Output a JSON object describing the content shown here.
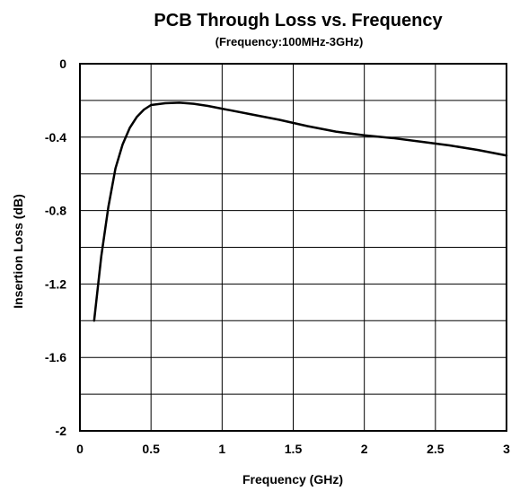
{
  "chart_data": {
    "type": "line",
    "title": "PCB Through Loss vs. Frequency",
    "subtitle": "(Frequency:100MHz-3GHz)",
    "xlabel": "Frequency (GHz)",
    "ylabel": "Insertion Loss (dB)",
    "xlim": [
      0,
      3
    ],
    "ylim": [
      -2,
      0
    ],
    "x_ticks": [
      0,
      0.5,
      1,
      1.5,
      2,
      2.5,
      3
    ],
    "x_tick_labels": [
      "0",
      "0.5",
      "1",
      "1.5",
      "2",
      "2.5",
      "3"
    ],
    "y_ticks": [
      0,
      -0.4,
      -0.8,
      -1.2,
      -1.6,
      -2
    ],
    "y_tick_labels": [
      "0",
      "-0.4",
      "-0.8",
      "-1.2",
      "-1.6",
      "-2"
    ],
    "grid": true,
    "series": [
      {
        "color": "#000000",
        "x": [
          0.1,
          0.15,
          0.2,
          0.25,
          0.3,
          0.35,
          0.4,
          0.45,
          0.5,
          0.6,
          0.7,
          0.8,
          0.9,
          1.0,
          1.2,
          1.4,
          1.6,
          1.8,
          2.0,
          2.2,
          2.4,
          2.6,
          2.8,
          3.0
        ],
        "y": [
          -1.4,
          -1.05,
          -0.78,
          -0.57,
          -0.44,
          -0.35,
          -0.29,
          -0.25,
          -0.225,
          -0.215,
          -0.212,
          -0.218,
          -0.23,
          -0.245,
          -0.275,
          -0.305,
          -0.34,
          -0.37,
          -0.39,
          -0.405,
          -0.425,
          -0.445,
          -0.47,
          -0.5
        ]
      }
    ]
  }
}
